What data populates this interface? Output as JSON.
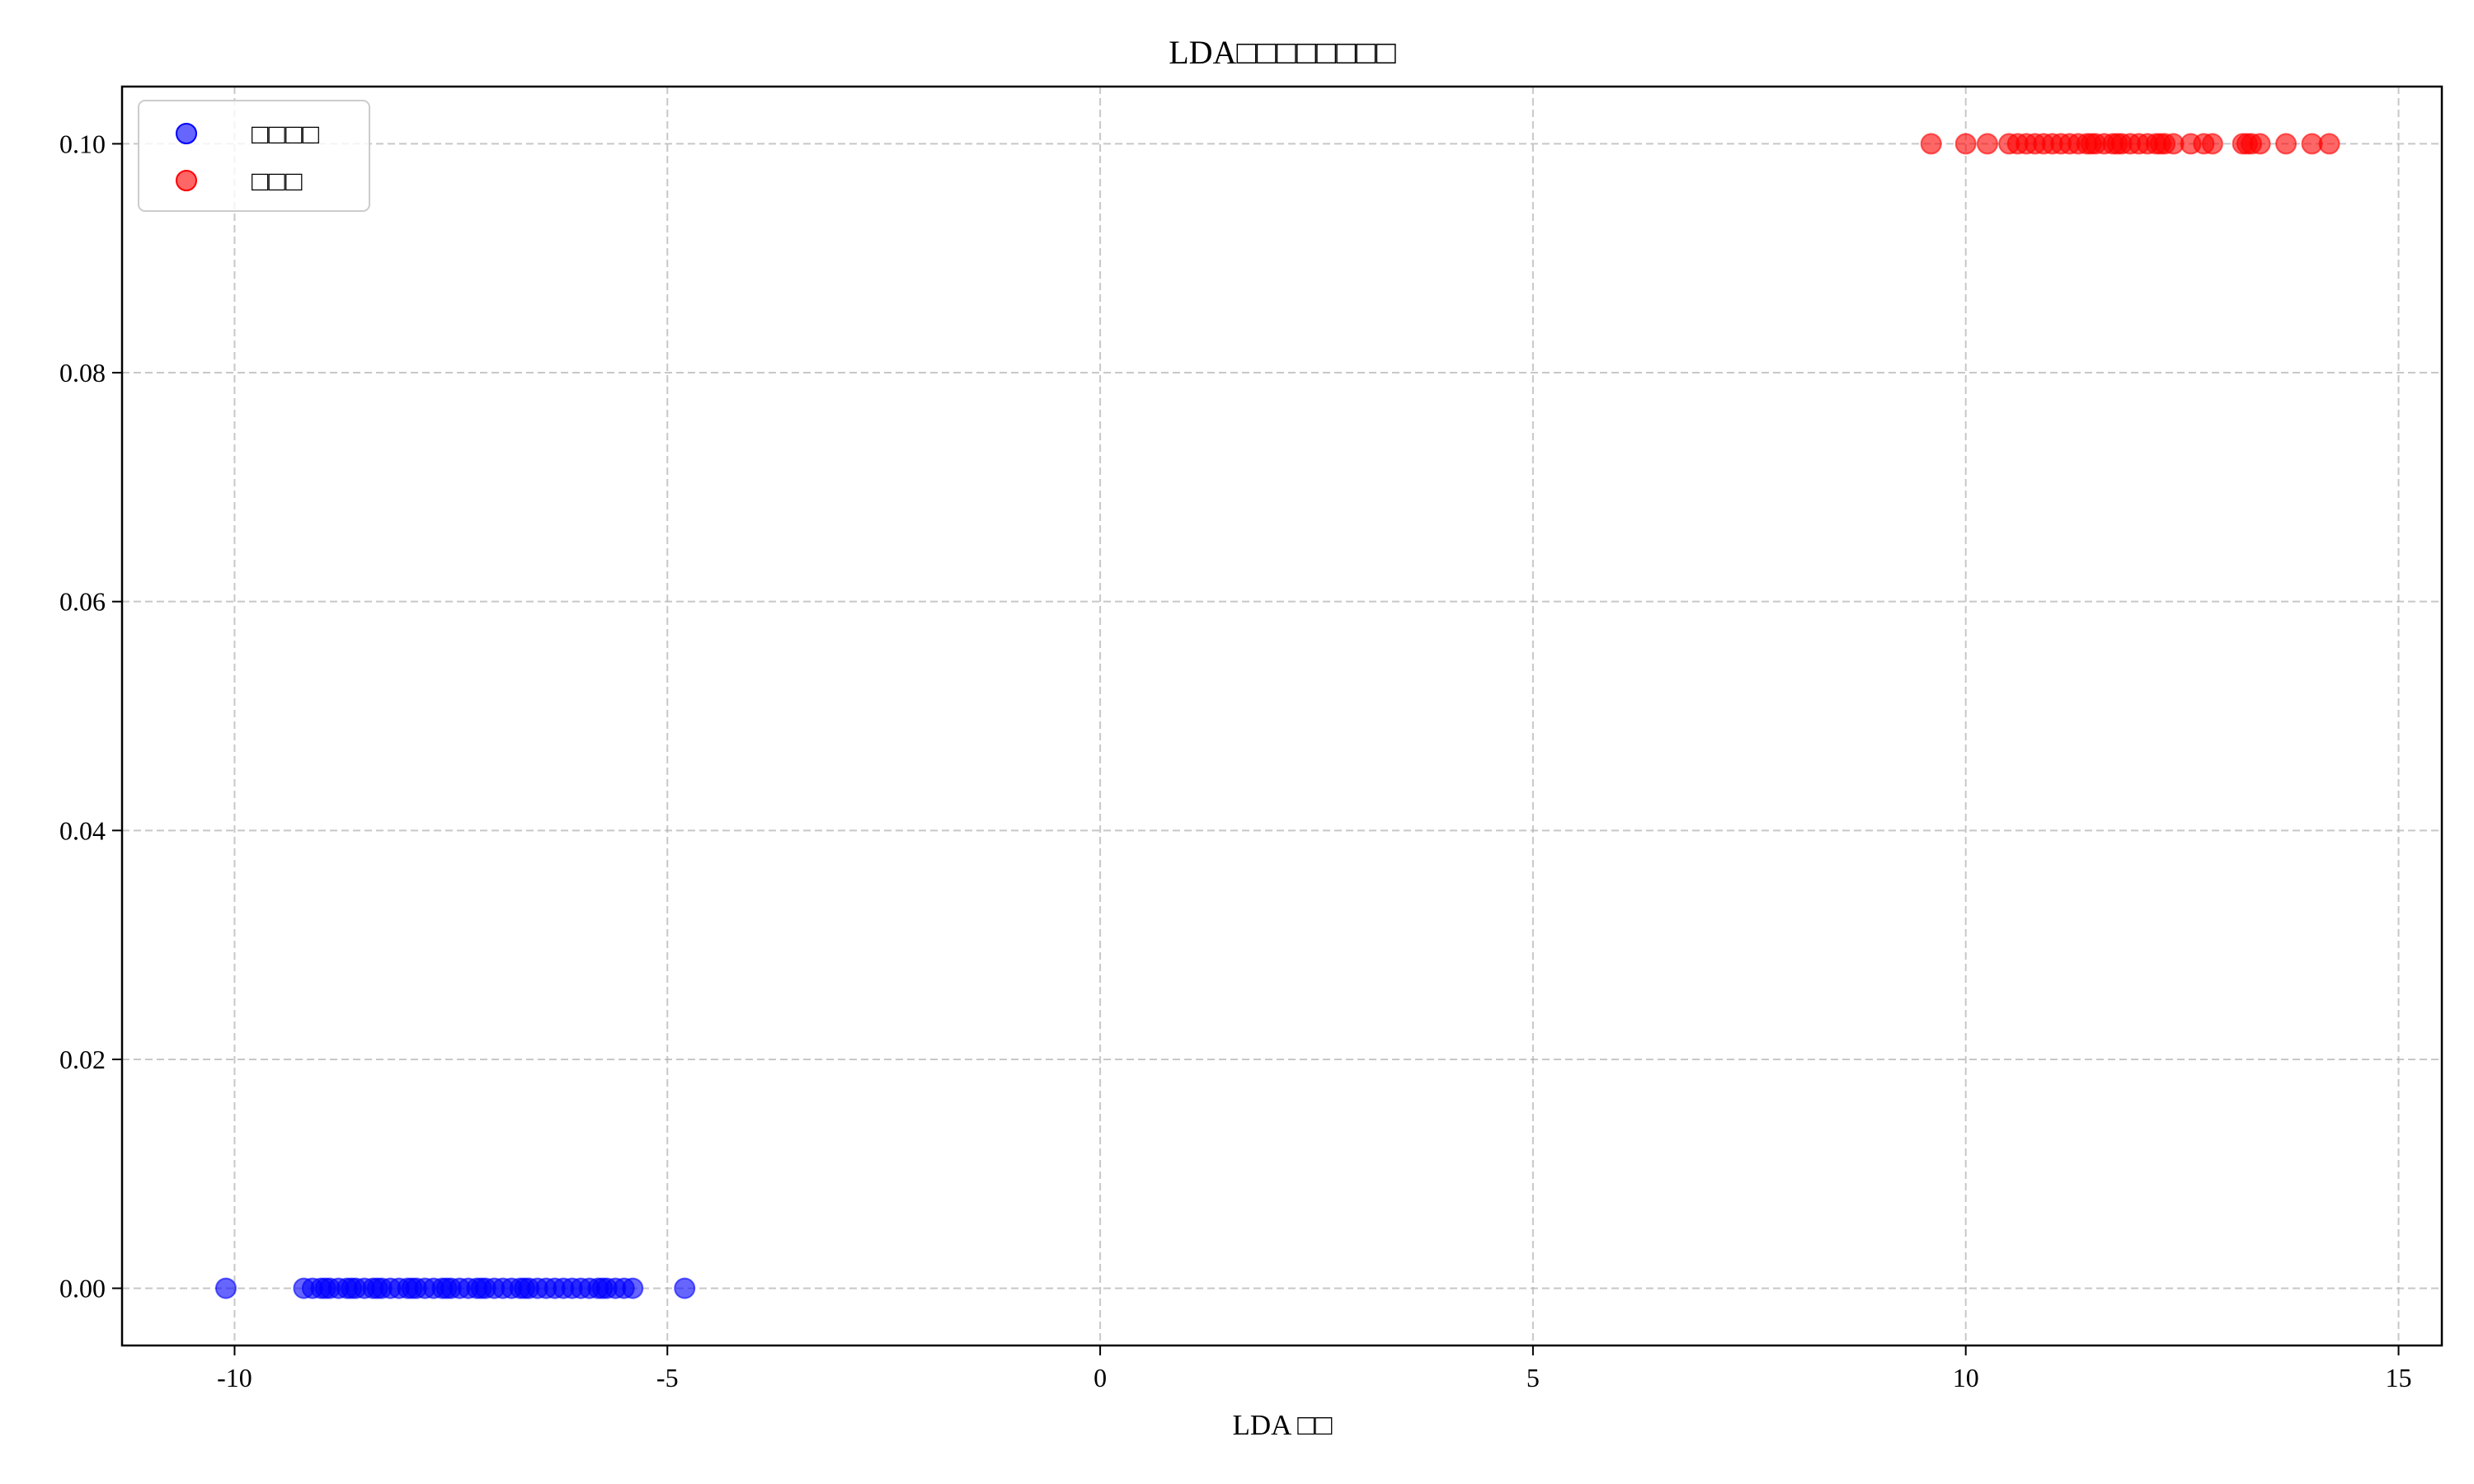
{
  "chart_data": {
    "type": "scatter",
    "title": "LDA□□□□□□□□",
    "xlabel": "LDA □□",
    "ylabel": "",
    "xlim": [
      -11.3,
      15.5
    ],
    "ylim": [
      -0.005,
      0.105
    ],
    "xticks": [
      -10,
      -5,
      0,
      5,
      10,
      15
    ],
    "xtick_labels": [
      "-10",
      "-5",
      "0",
      "5",
      "10",
      "15"
    ],
    "yticks": [
      0.0,
      0.02,
      0.04,
      0.06,
      0.08,
      0.1
    ],
    "ytick_labels": [
      "0.00",
      "0.02",
      "0.04",
      "0.06",
      "0.08",
      "0.10"
    ],
    "grid": true,
    "legend_position": "top-left",
    "series": [
      {
        "name": "□□□□",
        "color": "#0000ff",
        "y_value": 0.0,
        "x": [
          -10.1,
          -9.2,
          -9.1,
          -9.0,
          -8.95,
          -8.9,
          -8.8,
          -8.7,
          -8.65,
          -8.6,
          -8.5,
          -8.4,
          -8.35,
          -8.3,
          -8.2,
          -8.1,
          -8.0,
          -7.95,
          -7.9,
          -7.8,
          -7.7,
          -7.6,
          -7.55,
          -7.5,
          -7.4,
          -7.3,
          -7.2,
          -7.15,
          -7.1,
          -7.0,
          -6.9,
          -6.8,
          -6.7,
          -6.65,
          -6.6,
          -6.5,
          -6.4,
          -6.3,
          -6.2,
          -6.1,
          -6.0,
          -5.9,
          -5.8,
          -5.75,
          -5.7,
          -5.6,
          -5.5,
          -5.4,
          -4.8
        ]
      },
      {
        "name": "□□□",
        "color": "#ff0000",
        "y_value": 0.1,
        "x": [
          9.6,
          10.0,
          10.25,
          10.5,
          10.6,
          10.7,
          10.8,
          10.9,
          11.0,
          11.1,
          11.2,
          11.3,
          11.4,
          11.45,
          11.5,
          11.6,
          11.7,
          11.75,
          11.8,
          11.9,
          12.0,
          12.1,
          12.2,
          12.25,
          12.3,
          12.4,
          12.6,
          12.75,
          12.85,
          13.2,
          13.25,
          13.3,
          13.4,
          13.7,
          14.0,
          14.2
        ]
      }
    ]
  }
}
